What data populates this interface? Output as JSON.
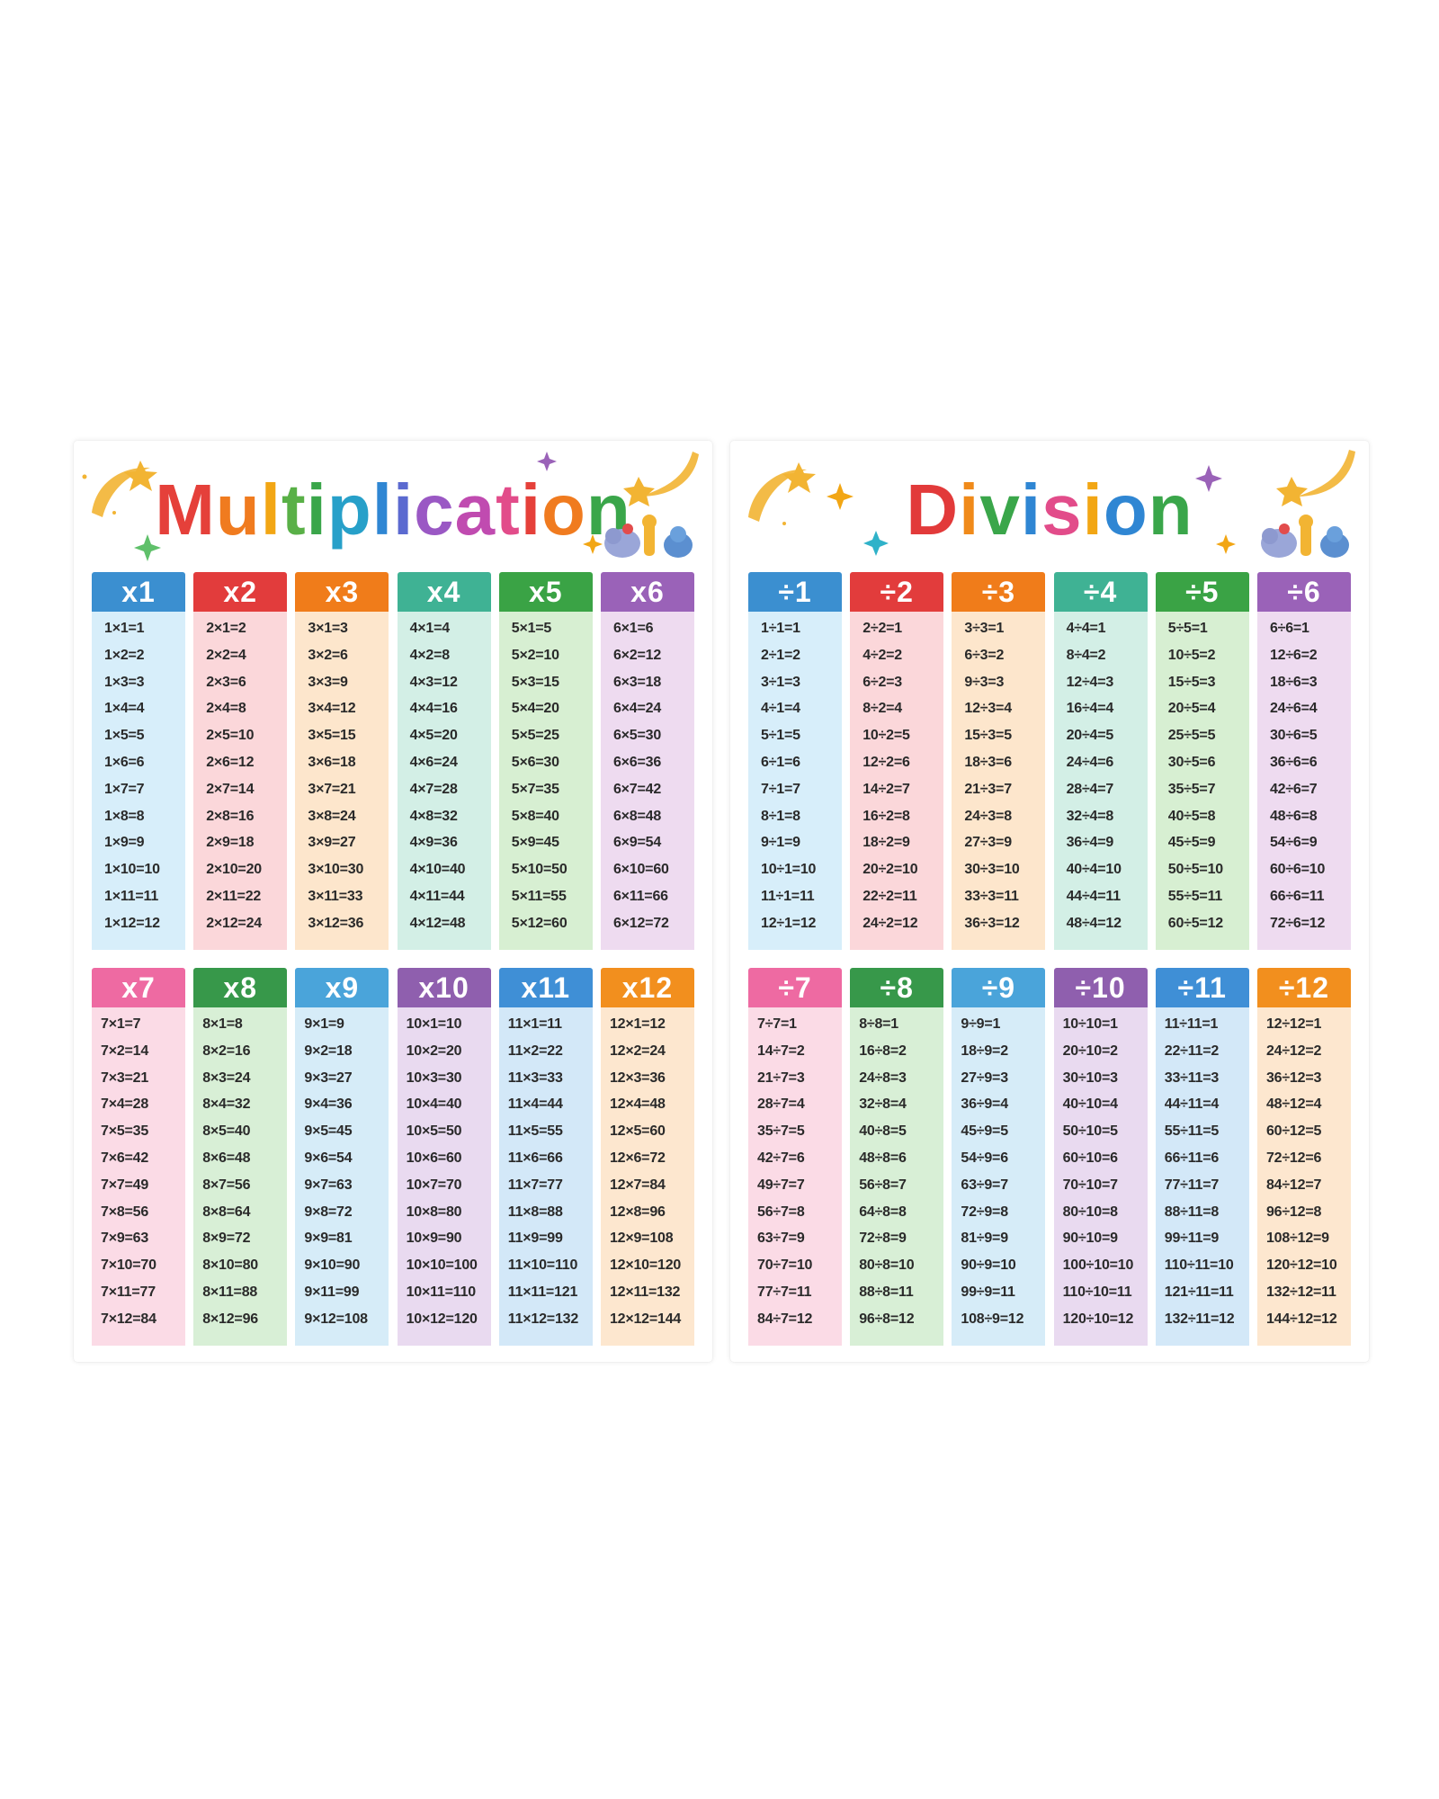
{
  "colors": {
    "blue": "#3b8fd0",
    "red": "#e23c3c",
    "orange": "#f07c1a",
    "teal": "#3fb294",
    "green": "#3aa345",
    "purple": "#9a62b8",
    "pink": "#ee6aa2",
    "dgreen": "#37984a",
    "lblue": "#4aa4da",
    "violet": "#8f5fae",
    "sky": "#3f8fd6",
    "amber": "#f28f1e",
    "tints": {
      "blue": "#d7eefa",
      "red": "#fbd7da",
      "orange": "#fde6cc",
      "teal": "#d3efe6",
      "green": "#d7efd2",
      "purple": "#eedbf0",
      "pink": "#fbdbe6",
      "dgreen": "#d8efd6",
      "lblue": "#d6ecf8",
      "violet": "#e9daf0",
      "sky": "#d3e8f8",
      "amber": "#fde7cf"
    }
  },
  "multiplication": {
    "title_letters": [
      {
        "ch": "M",
        "color": "#e5403a"
      },
      {
        "ch": "u",
        "color": "#f07b1f"
      },
      {
        "ch": "l",
        "color": "#f2a614"
      },
      {
        "ch": "t",
        "color": "#59b047"
      },
      {
        "ch": "i",
        "color": "#3aa64a"
      },
      {
        "ch": "p",
        "color": "#27a0c9"
      },
      {
        "ch": "l",
        "color": "#2f86d3"
      },
      {
        "ch": "i",
        "color": "#5b6ad0"
      },
      {
        "ch": "c",
        "color": "#9a58c4"
      },
      {
        "ch": "a",
        "color": "#c04bb0"
      },
      {
        "ch": "t",
        "color": "#e24c8a"
      },
      {
        "ch": "i",
        "color": "#e5403a"
      },
      {
        "ch": "o",
        "color": "#f07b1f"
      },
      {
        "ch": "n",
        "color": "#3aa64a"
      }
    ],
    "tables": [
      {
        "head": "x1",
        "color": "blue",
        "facts": [
          "1×1=1",
          "1×2=2",
          "1×3=3",
          "1×4=4",
          "1×5=5",
          "1×6=6",
          "1×7=7",
          "1×8=8",
          "1×9=9",
          "1×10=10",
          "1×11=11",
          "1×12=12"
        ]
      },
      {
        "head": "x2",
        "color": "red",
        "facts": [
          "2×1=2",
          "2×2=4",
          "2×3=6",
          "2×4=8",
          "2×5=10",
          "2×6=12",
          "2×7=14",
          "2×8=16",
          "2×9=18",
          "2×10=20",
          "2×11=22",
          "2×12=24"
        ]
      },
      {
        "head": "x3",
        "color": "orange",
        "facts": [
          "3×1=3",
          "3×2=6",
          "3×3=9",
          "3×4=12",
          "3×5=15",
          "3×6=18",
          "3×7=21",
          "3×8=24",
          "3×9=27",
          "3×10=30",
          "3×11=33",
          "3×12=36"
        ]
      },
      {
        "head": "x4",
        "color": "teal",
        "facts": [
          "4×1=4",
          "4×2=8",
          "4×3=12",
          "4×4=16",
          "4×5=20",
          "4×6=24",
          "4×7=28",
          "4×8=32",
          "4×9=36",
          "4×10=40",
          "4×11=44",
          "4×12=48"
        ]
      },
      {
        "head": "x5",
        "color": "green",
        "facts": [
          "5×1=5",
          "5×2=10",
          "5×3=15",
          "5×4=20",
          "5×5=25",
          "5×6=30",
          "5×7=35",
          "5×8=40",
          "5×9=45",
          "5×10=50",
          "5×11=55",
          "5×12=60"
        ]
      },
      {
        "head": "x6",
        "color": "purple",
        "facts": [
          "6×1=6",
          "6×2=12",
          "6×3=18",
          "6×4=24",
          "6×5=30",
          "6×6=36",
          "6×7=42",
          "6×8=48",
          "6×9=54",
          "6×10=60",
          "6×11=66",
          "6×12=72"
        ]
      },
      {
        "head": "x7",
        "color": "pink",
        "facts": [
          "7×1=7",
          "7×2=14",
          "7×3=21",
          "7×4=28",
          "7×5=35",
          "7×6=42",
          "7×7=49",
          "7×8=56",
          "7×9=63",
          "7×10=70",
          "7×11=77",
          "7×12=84"
        ]
      },
      {
        "head": "x8",
        "color": "dgreen",
        "facts": [
          "8×1=8",
          "8×2=16",
          "8×3=24",
          "8×4=32",
          "8×5=40",
          "8×6=48",
          "8×7=56",
          "8×8=64",
          "8×9=72",
          "8×10=80",
          "8×11=88",
          "8×12=96"
        ]
      },
      {
        "head": "x9",
        "color": "lblue",
        "facts": [
          "9×1=9",
          "9×2=18",
          "9×3=27",
          "9×4=36",
          "9×5=45",
          "9×6=54",
          "9×7=63",
          "9×8=72",
          "9×9=81",
          "9×10=90",
          "9×11=99",
          "9×12=108"
        ]
      },
      {
        "head": "x10",
        "color": "violet",
        "facts": [
          "10×1=10",
          "10×2=20",
          "10×3=30",
          "10×4=40",
          "10×5=50",
          "10×6=60",
          "10×7=70",
          "10×8=80",
          "10×9=90",
          "10×10=100",
          "10×11=110",
          "10×12=120"
        ]
      },
      {
        "head": "x11",
        "color": "sky",
        "facts": [
          "11×1=11",
          "11×2=22",
          "11×3=33",
          "11×4=44",
          "11×5=55",
          "11×6=66",
          "11×7=77",
          "11×8=88",
          "11×9=99",
          "11×10=110",
          "11×11=121",
          "11×12=132"
        ]
      },
      {
        "head": "x12",
        "color": "amber",
        "facts": [
          "12×1=12",
          "12×2=24",
          "12×3=36",
          "12×4=48",
          "12×5=60",
          "12×6=72",
          "12×7=84",
          "12×8=96",
          "12×9=108",
          "12×10=120",
          "12×11=132",
          "12×12=144"
        ]
      }
    ]
  },
  "division": {
    "title_letters": [
      {
        "ch": "D",
        "color": "#e23a3a"
      },
      {
        "ch": "i",
        "color": "#f08a1a"
      },
      {
        "ch": "v",
        "color": "#3aa64a"
      },
      {
        "ch": "i",
        "color": "#2f86d3"
      },
      {
        "ch": "s",
        "color": "#e24c8a"
      },
      {
        "ch": "i",
        "color": "#f2a614"
      },
      {
        "ch": "o",
        "color": "#2f86d3"
      },
      {
        "ch": "n",
        "color": "#3aa64a"
      }
    ],
    "tables": [
      {
        "head": "÷1",
        "color": "blue",
        "facts": [
          "1÷1=1",
          "2÷1=2",
          "3÷1=3",
          "4÷1=4",
          "5÷1=5",
          "6÷1=6",
          "7÷1=7",
          "8÷1=8",
          "9÷1=9",
          "10÷1=10",
          "11÷1=11",
          "12÷1=12"
        ]
      },
      {
        "head": "÷2",
        "color": "red",
        "facts": [
          "2÷2=1",
          "4÷2=2",
          "6÷2=3",
          "8÷2=4",
          "10÷2=5",
          "12÷2=6",
          "14÷2=7",
          "16÷2=8",
          "18÷2=9",
          "20÷2=10",
          "22÷2=11",
          "24÷2=12"
        ]
      },
      {
        "head": "÷3",
        "color": "orange",
        "facts": [
          "3÷3=1",
          "6÷3=2",
          "9÷3=3",
          "12÷3=4",
          "15÷3=5",
          "18÷3=6",
          "21÷3=7",
          "24÷3=8",
          "27÷3=9",
          "30÷3=10",
          "33÷3=11",
          "36÷3=12"
        ]
      },
      {
        "head": "÷4",
        "color": "teal",
        "facts": [
          "4÷4=1",
          "8÷4=2",
          "12÷4=3",
          "16÷4=4",
          "20÷4=5",
          "24÷4=6",
          "28÷4=7",
          "32÷4=8",
          "36÷4=9",
          "40÷4=10",
          "44÷4=11",
          "48÷4=12"
        ]
      },
      {
        "head": "÷5",
        "color": "green",
        "facts": [
          "5÷5=1",
          "10÷5=2",
          "15÷5=3",
          "20÷5=4",
          "25÷5=5",
          "30÷5=6",
          "35÷5=7",
          "40÷5=8",
          "45÷5=9",
          "50÷5=10",
          "55÷5=11",
          "60÷5=12"
        ]
      },
      {
        "head": "÷6",
        "color": "purple",
        "facts": [
          "6÷6=1",
          "12÷6=2",
          "18÷6=3",
          "24÷6=4",
          "30÷6=5",
          "36÷6=6",
          "42÷6=7",
          "48÷6=8",
          "54÷6=9",
          "60÷6=10",
          "66÷6=11",
          "72÷6=12"
        ]
      },
      {
        "head": "÷7",
        "color": "pink",
        "facts": [
          "7÷7=1",
          "14÷7=2",
          "21÷7=3",
          "28÷7=4",
          "35÷7=5",
          "42÷7=6",
          "49÷7=7",
          "56÷7=8",
          "63÷7=9",
          "70÷7=10",
          "77÷7=11",
          "84÷7=12"
        ]
      },
      {
        "head": "÷8",
        "color": "dgreen",
        "facts": [
          "8÷8=1",
          "16÷8=2",
          "24÷8=3",
          "32÷8=4",
          "40÷8=5",
          "48÷8=6",
          "56÷8=7",
          "64÷8=8",
          "72÷8=9",
          "80÷8=10",
          "88÷8=11",
          "96÷8=12"
        ]
      },
      {
        "head": "÷9",
        "color": "lblue",
        "facts": [
          "9÷9=1",
          "18÷9=2",
          "27÷9=3",
          "36÷9=4",
          "45÷9=5",
          "54÷9=6",
          "63÷9=7",
          "72÷9=8",
          "81÷9=9",
          "90÷9=10",
          "99÷9=11",
          "108÷9=12"
        ]
      },
      {
        "head": "÷10",
        "color": "violet",
        "facts": [
          "10÷10=1",
          "20÷10=2",
          "30÷10=3",
          "40÷10=4",
          "50÷10=5",
          "60÷10=6",
          "70÷10=7",
          "80÷10=8",
          "90÷10=9",
          "100÷10=10",
          "110÷10=11",
          "120÷10=12"
        ]
      },
      {
        "head": "÷11",
        "color": "sky",
        "facts": [
          "11÷11=1",
          "22÷11=2",
          "33÷11=3",
          "44÷11=4",
          "55÷11=5",
          "66÷11=6",
          "77÷11=7",
          "88÷11=8",
          "99÷11=9",
          "110÷11=10",
          "121÷11=11",
          "132÷11=12"
        ]
      },
      {
        "head": "÷12",
        "color": "amber",
        "facts": [
          "12÷12=1",
          "24÷12=2",
          "36÷12=3",
          "48÷12=4",
          "60÷12=5",
          "72÷12=6",
          "84÷12=7",
          "96÷12=8",
          "108÷12=9",
          "120÷12=10",
          "132÷12=11",
          "144÷12=12"
        ]
      }
    ]
  }
}
